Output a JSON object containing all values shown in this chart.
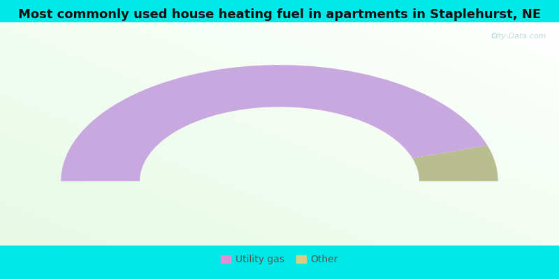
{
  "title": "Most commonly used house heating fuel in apartments in Staplehurst, NE",
  "title_fontsize": 13,
  "title_fontweight": "bold",
  "segments": [
    "Utility gas",
    "Other"
  ],
  "values": [
    90.0,
    10.0
  ],
  "colors": [
    "#c9a8e0",
    "#b8be90"
  ],
  "legend_marker_colors": [
    "#e090d8",
    "#d4cc88"
  ],
  "background_outer": "#00e8e8",
  "watermark": "City-Data.com"
}
